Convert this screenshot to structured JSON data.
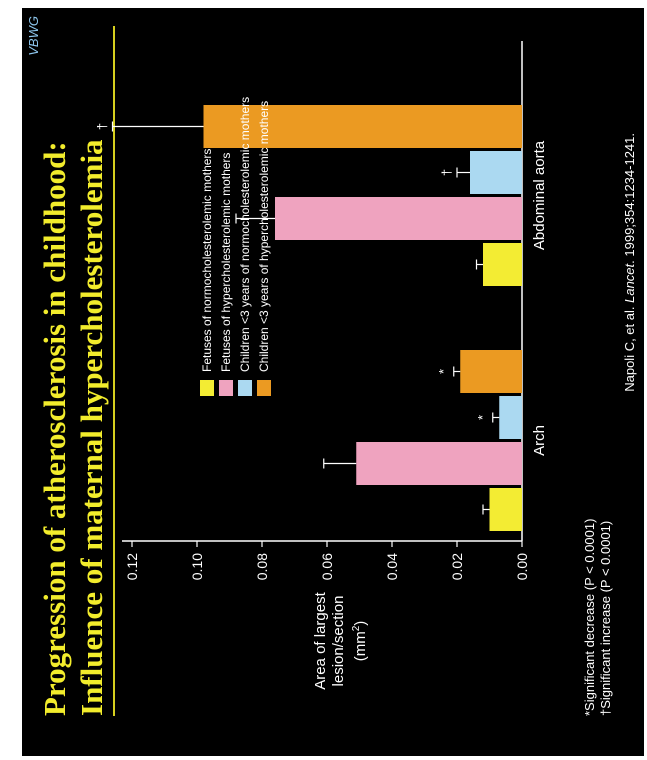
{
  "brand": "VBWG",
  "title_lines": [
    "Progression of atherosclerosis in childhood:",
    "Influence of maternal hypercholesterolemia"
  ],
  "footnotes": [
    "*Significant decrease (P < 0.0001)",
    "†Significant increase (P < 0.0001)"
  ],
  "citation": {
    "prefix": "Napoli C, et al. ",
    "journal": "Lancet",
    "suffix": ". 1999;354:1234-1241."
  },
  "colors": {
    "yellow": "#f3ec33",
    "pink": "#efa3bf",
    "lightblue": "#abd9f1",
    "orange": "#eb9a22",
    "title": "#f2ec2c"
  },
  "chart_data": {
    "type": "bar",
    "ylabel": "Area of largest lesion/section (mm2)",
    "ylabel_lines": [
      "Area of largest",
      "lesion/section",
      "(mm",
      "2",
      ")"
    ],
    "ylim": [
      0,
      0.12
    ],
    "yticks": [
      "0.00",
      "0.02",
      "0.04",
      "0.06",
      "0.08",
      "0.10",
      "0.12"
    ],
    "categories": [
      "Arch",
      "Abdominal aorta"
    ],
    "series": [
      {
        "name": "Fetuses of normocholesterolemic mothers",
        "values": [
          0.01,
          0.012
        ],
        "errors": [
          0.002,
          0.002
        ],
        "mark": [
          "",
          ""
        ],
        "color": "#f3ec33"
      },
      {
        "name": "Fetuses of hypercholesterolemic mothers",
        "values": [
          0.051,
          0.076
        ],
        "errors": [
          0.01,
          0.012
        ],
        "mark": [
          "",
          ""
        ],
        "color": "#efa3bf"
      },
      {
        "name": "Children <3 years of normocholesterolemic mothers",
        "values": [
          0.007,
          0.016
        ],
        "errors": [
          0.002,
          0.004
        ],
        "mark": [
          "*",
          "†"
        ],
        "color": "#abd9f1"
      },
      {
        "name": "Children <3 years of hypercholesterolemic mothers",
        "values": [
          0.019,
          0.098
        ],
        "errors": [
          0.002,
          0.028
        ],
        "mark": [
          "*",
          "†"
        ],
        "color": "#eb9a22"
      }
    ]
  }
}
